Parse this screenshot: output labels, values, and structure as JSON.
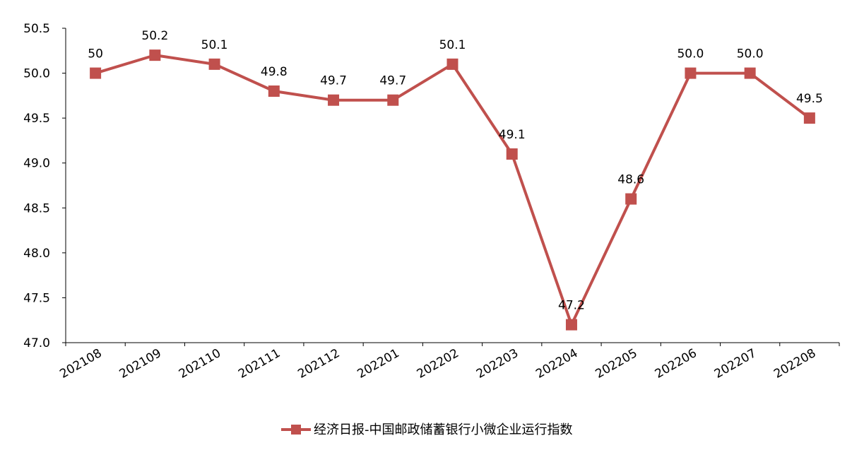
{
  "chart_data": {
    "type": "line",
    "categories": [
      "202108",
      "202109",
      "202110",
      "202111",
      "202112",
      "202201",
      "202202",
      "202203",
      "202204",
      "202205",
      "202206",
      "202207",
      "202208"
    ],
    "series": [
      {
        "name": "经济日报-中国邮政储蓄银行小微企业运行指数",
        "values": [
          50.0,
          50.2,
          50.1,
          49.8,
          49.7,
          49.7,
          50.1,
          49.1,
          47.2,
          48.6,
          50.0,
          50.0,
          49.5
        ],
        "labels": [
          "50",
          "50.2",
          "50.1",
          "49.8",
          "49.7",
          "49.7",
          "50.1",
          "49.1",
          "47.2",
          "48.6",
          "50.0",
          "50.0",
          "49.5"
        ],
        "color": "#C0504D"
      }
    ],
    "y_ticks": [
      "47.0",
      "47.5",
      "48.0",
      "48.5",
      "49.0",
      "49.5",
      "50.0",
      "50.5"
    ],
    "ylim": [
      47.0,
      50.5
    ],
    "title": "",
    "xlabel": "",
    "ylabel": "",
    "grid": false,
    "legend_position": "bottom"
  }
}
